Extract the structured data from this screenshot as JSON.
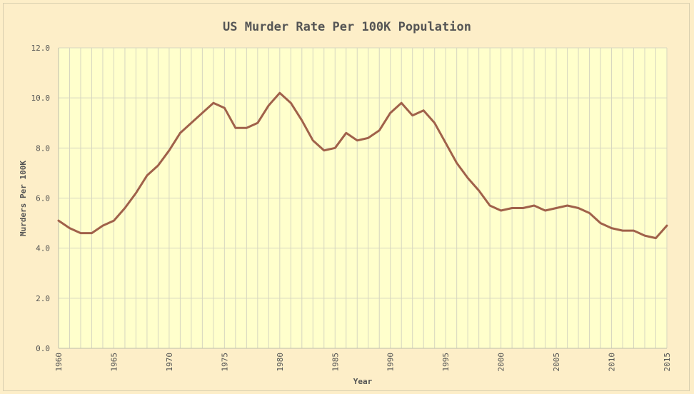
{
  "chart_data": {
    "type": "line",
    "title": "US Murder Rate Per 100K Population",
    "xlabel": "Year",
    "ylabel": "Murders Per 100K",
    "xlim": [
      1960,
      2015
    ],
    "ylim": [
      0,
      12
    ],
    "y_ticks": [
      "0.0",
      "2.0",
      "4.0",
      "6.0",
      "8.0",
      "10.0",
      "12.0"
    ],
    "x_ticks": [
      "1960",
      "1965",
      "1970",
      "1975",
      "1980",
      "1985",
      "1990",
      "1995",
      "2000",
      "2005",
      "2010",
      "2015"
    ],
    "grid": "on",
    "legend": "none",
    "colors": {
      "line": "#a0614a",
      "plot_bg": "#ffffcc",
      "page_bg": "#fdeec8",
      "grid": "#d6d6c0"
    },
    "series": [
      {
        "x": [
          1960,
          1961,
          1962,
          1963,
          1964,
          1965,
          1966,
          1967,
          1968,
          1969,
          1970,
          1971,
          1972,
          1973,
          1974,
          1975,
          1976,
          1977,
          1978,
          1979,
          1980,
          1981,
          1982,
          1983,
          1984,
          1985,
          1986,
          1987,
          1988,
          1989,
          1990,
          1991,
          1992,
          1993,
          1994,
          1995,
          1996,
          1997,
          1998,
          1999,
          2000,
          2001,
          2002,
          2003,
          2004,
          2005,
          2006,
          2007,
          2008,
          2009,
          2010,
          2011,
          2012,
          2013,
          2014,
          2015
        ],
        "values": [
          5.1,
          4.8,
          4.6,
          4.6,
          4.9,
          5.1,
          5.6,
          6.2,
          6.9,
          7.3,
          7.9,
          8.6,
          9.0,
          9.4,
          9.8,
          9.6,
          8.8,
          8.8,
          9.0,
          9.7,
          10.2,
          9.8,
          9.1,
          8.3,
          7.9,
          8.0,
          8.6,
          8.3,
          8.4,
          8.7,
          9.4,
          9.8,
          9.3,
          9.5,
          9.0,
          8.2,
          7.4,
          6.8,
          6.3,
          5.7,
          5.5,
          5.6,
          5.6,
          5.7,
          5.5,
          5.6,
          5.7,
          5.6,
          5.4,
          5.0,
          4.8,
          4.7,
          4.7,
          4.5,
          4.4,
          4.9
        ]
      }
    ]
  }
}
